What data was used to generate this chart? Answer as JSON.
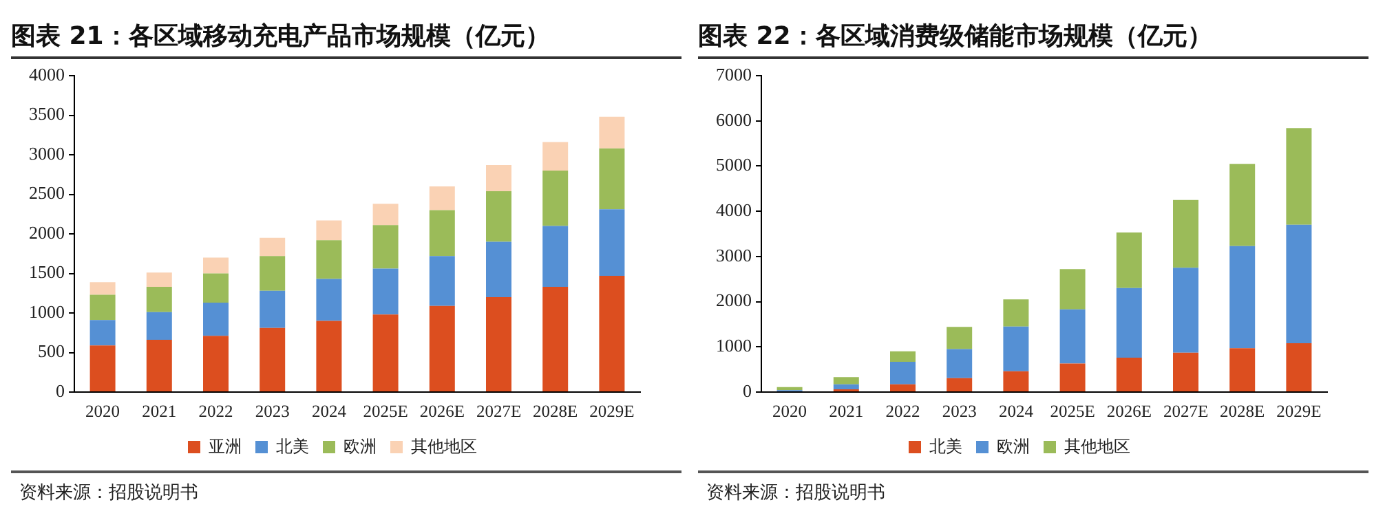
{
  "chart_data": [
    {
      "type": "bar",
      "title": "图表 21：各区域移动充电产品市场规模（亿元）",
      "categories": [
        "2020",
        "2021",
        "2022",
        "2023",
        "2024",
        "2025E",
        "2026E",
        "2027E",
        "2028E",
        "2029E"
      ],
      "stacked": true,
      "ylim": [
        0,
        4000
      ],
      "yticks": [
        0,
        500,
        1000,
        1500,
        2000,
        2500,
        3000,
        3500,
        4000
      ],
      "grid": false,
      "legend": "bottom",
      "annotations": [
        "资料来源：招股说明书"
      ],
      "series": [
        {
          "name": "亚洲",
          "color": "#dc4e1f",
          "values": [
            590,
            660,
            710,
            810,
            900,
            980,
            1090,
            1200,
            1330,
            1470
          ]
        },
        {
          "name": "北美",
          "color": "#5590d4",
          "values": [
            320,
            350,
            420,
            470,
            530,
            580,
            630,
            700,
            770,
            840
          ]
        },
        {
          "name": "欧洲",
          "color": "#9bbb59",
          "values": [
            320,
            320,
            370,
            440,
            490,
            550,
            580,
            640,
            700,
            770
          ]
        },
        {
          "name": "其他地区",
          "color": "#fad2b4",
          "values": [
            160,
            180,
            200,
            230,
            250,
            270,
            300,
            330,
            360,
            400
          ]
        }
      ]
    },
    {
      "type": "bar",
      "title": "图表 22：各区域消费级储能市场规模（亿元）",
      "categories": [
        "2020",
        "2021",
        "2022",
        "2023",
        "2024",
        "2025E",
        "2026E",
        "2027E",
        "2028E",
        "2029E"
      ],
      "stacked": true,
      "ylim": [
        0,
        7000
      ],
      "yticks": [
        0,
        1000,
        2000,
        3000,
        4000,
        5000,
        6000,
        7000
      ],
      "grid": false,
      "legend": "bottom",
      "annotations": [
        "资料来源：招股说明书"
      ],
      "series": [
        {
          "name": "北美",
          "color": "#dc4e1f",
          "values": [
            null,
            60,
            170,
            310,
            460,
            630,
            760,
            870,
            970,
            1080
          ]
        },
        {
          "name": "欧洲",
          "color": "#5590d4",
          "values": [
            40,
            110,
            500,
            640,
            990,
            1200,
            1540,
            1880,
            2260,
            2620
          ]
        },
        {
          "name": "其他地区",
          "color": "#9bbb59",
          "values": [
            70,
            160,
            230,
            490,
            600,
            890,
            1230,
            1500,
            1820,
            2140
          ]
        }
      ]
    }
  ]
}
